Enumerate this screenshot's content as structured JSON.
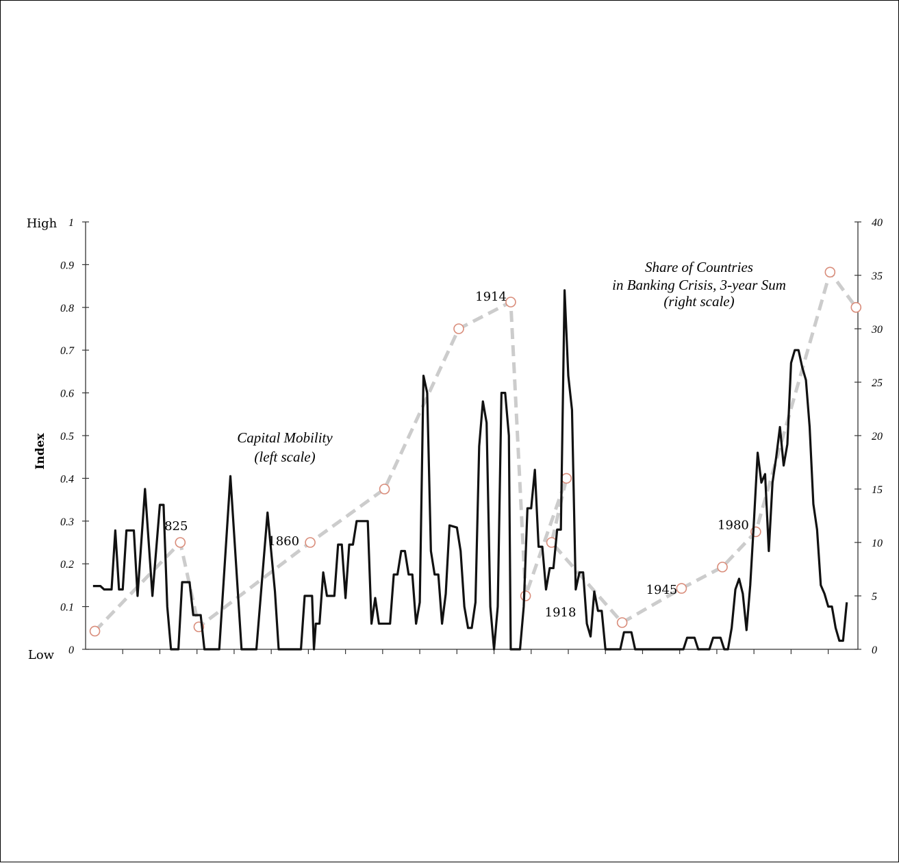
{
  "chart_data": {
    "type": "line",
    "ylabel": "Index",
    "left_axis": {
      "range": [
        0,
        1
      ],
      "tick_labels": [
        "0",
        "0.1",
        "0.2",
        "0.3",
        "0.4",
        "0.5",
        "0.6",
        "0.7",
        "0.8",
        "0.9",
        "1"
      ],
      "high_label": "High",
      "low_label": "Low"
    },
    "right_axis": {
      "range": [
        0,
        40
      ],
      "tick_labels": [
        "0",
        "5",
        "10",
        "15",
        "20",
        "25",
        "30",
        "35",
        "40"
      ]
    },
    "x_range": [
      1800,
      2008
    ],
    "colors": {
      "capital_mobility": "#111111",
      "banking_crisis_line": "#cccccc",
      "banking_crisis_marker": "#d98c7a"
    },
    "series": [
      {
        "name": "Capital Mobility (left scale)",
        "label_line1": "Capital Mobility",
        "label_line2": "(left scale)",
        "style": "solid",
        "points": [
          [
            1802,
            0.148
          ],
          [
            1804,
            0.148
          ],
          [
            1805,
            0.14
          ],
          [
            1807,
            0.14
          ],
          [
            1808,
            0.278
          ],
          [
            1809,
            0.14
          ],
          [
            1810,
            0.14
          ],
          [
            1811,
            0.278
          ],
          [
            1813,
            0.278
          ],
          [
            1814,
            0.125
          ],
          [
            1816,
            0.375
          ],
          [
            1818,
            0.125
          ],
          [
            1820,
            0.338
          ],
          [
            1821,
            0.338
          ],
          [
            1822,
            0.1
          ],
          [
            1823,
            0.0
          ],
          [
            1825,
            0.0
          ],
          [
            1826,
            0.157
          ],
          [
            1828,
            0.157
          ],
          [
            1829,
            0.08
          ],
          [
            1831,
            0.08
          ],
          [
            1832,
            0.0
          ],
          [
            1836,
            0.0
          ],
          [
            1839,
            0.405
          ],
          [
            1842,
            0.0
          ],
          [
            1846,
            0.0
          ],
          [
            1849,
            0.32
          ],
          [
            1851,
            0.135
          ],
          [
            1852,
            0.0
          ],
          [
            1858,
            0.0
          ],
          [
            1859,
            0.125
          ],
          [
            1861,
            0.125
          ],
          [
            1861.5,
            0.0
          ],
          [
            1862,
            0.06
          ],
          [
            1863,
            0.06
          ],
          [
            1864,
            0.18
          ],
          [
            1865,
            0.125
          ],
          [
            1867,
            0.125
          ],
          [
            1868,
            0.245
          ],
          [
            1869,
            0.245
          ],
          [
            1870,
            0.12
          ],
          [
            1871,
            0.245
          ],
          [
            1872,
            0.245
          ],
          [
            1873,
            0.3
          ],
          [
            1876,
            0.3
          ],
          [
            1877,
            0.06
          ],
          [
            1878,
            0.12
          ],
          [
            1879,
            0.06
          ],
          [
            1882,
            0.06
          ],
          [
            1883,
            0.175
          ],
          [
            1884,
            0.175
          ],
          [
            1885,
            0.23
          ],
          [
            1886,
            0.23
          ],
          [
            1887,
            0.175
          ],
          [
            1888,
            0.175
          ],
          [
            1889,
            0.06
          ],
          [
            1890,
            0.11
          ],
          [
            1891,
            0.64
          ],
          [
            1892,
            0.6
          ],
          [
            1893,
            0.23
          ],
          [
            1894,
            0.175
          ],
          [
            1895,
            0.175
          ],
          [
            1896,
            0.06
          ],
          [
            1897,
            0.13
          ],
          [
            1898,
            0.29
          ],
          [
            1900,
            0.285
          ],
          [
            1901,
            0.23
          ],
          [
            1902,
            0.1
          ],
          [
            1903,
            0.05
          ],
          [
            1904,
            0.05
          ],
          [
            1905,
            0.11
          ],
          [
            1906,
            0.475
          ],
          [
            1907,
            0.58
          ],
          [
            1908,
            0.53
          ],
          [
            1909,
            0.1
          ],
          [
            1910,
            0.0
          ],
          [
            1911,
            0.1
          ],
          [
            1912,
            0.6
          ],
          [
            1913,
            0.6
          ],
          [
            1914,
            0.5
          ],
          [
            1914.5,
            0.0
          ],
          [
            1917,
            0.0
          ],
          [
            1918,
            0.1
          ],
          [
            1919,
            0.33
          ],
          [
            1920,
            0.33
          ],
          [
            1921,
            0.42
          ],
          [
            1922,
            0.24
          ],
          [
            1923,
            0.24
          ],
          [
            1924,
            0.14
          ],
          [
            1925,
            0.19
          ],
          [
            1926,
            0.19
          ],
          [
            1927,
            0.28
          ],
          [
            1928,
            0.28
          ],
          [
            1929,
            0.84
          ],
          [
            1930,
            0.64
          ],
          [
            1931,
            0.56
          ],
          [
            1932,
            0.14
          ],
          [
            1933,
            0.18
          ],
          [
            1934,
            0.18
          ],
          [
            1935,
            0.06
          ],
          [
            1936,
            0.03
          ],
          [
            1937,
            0.135
          ],
          [
            1938,
            0.09
          ],
          [
            1939,
            0.09
          ],
          [
            1940,
            0.0
          ],
          [
            1944,
            0.0
          ],
          [
            1945,
            0.04
          ],
          [
            1947,
            0.04
          ],
          [
            1948,
            0.0
          ],
          [
            1958,
            0.0
          ],
          [
            1961,
            0.0
          ],
          [
            1962,
            0.027
          ],
          [
            1964,
            0.027
          ],
          [
            1965,
            0.0
          ],
          [
            1968,
            0.0
          ],
          [
            1969,
            0.027
          ],
          [
            1971,
            0.027
          ],
          [
            1972,
            0.0
          ],
          [
            1973,
            0.0
          ],
          [
            1974,
            0.05
          ],
          [
            1975,
            0.14
          ],
          [
            1976,
            0.165
          ],
          [
            1977,
            0.13
          ],
          [
            1978,
            0.045
          ],
          [
            1979,
            0.15
          ],
          [
            1980,
            0.3
          ],
          [
            1981,
            0.46
          ],
          [
            1982,
            0.39
          ],
          [
            1983,
            0.41
          ],
          [
            1984,
            0.23
          ],
          [
            1985,
            0.39
          ],
          [
            1986,
            0.45
          ],
          [
            1987,
            0.52
          ],
          [
            1988,
            0.43
          ],
          [
            1989,
            0.48
          ],
          [
            1990,
            0.67
          ],
          [
            1991,
            0.7
          ],
          [
            1992,
            0.7
          ],
          [
            1993,
            0.66
          ],
          [
            1994,
            0.63
          ],
          [
            1995,
            0.52
          ],
          [
            1996,
            0.34
          ],
          [
            1997,
            0.28
          ],
          [
            1998,
            0.15
          ],
          [
            1999,
            0.13
          ],
          [
            2000,
            0.1
          ],
          [
            2001,
            0.1
          ],
          [
            2002,
            0.05
          ],
          [
            2003,
            0.02
          ],
          [
            2004,
            0.02
          ],
          [
            2005,
            0.11
          ]
        ]
      },
      {
        "name": "Share of Countries in Banking Crisis, 3-year Sum (right scale)",
        "label_line1": "Share of Countries",
        "label_line2": "in Banking Crisis, 3-year Sum",
        "label_line3": "(right scale)",
        "style": "dashed",
        "points": [
          [
            1802.5,
            1.7
          ],
          [
            1825.5,
            10.0
          ],
          [
            1830.5,
            2.1
          ],
          [
            1860.5,
            10.0
          ],
          [
            1880.5,
            15.0
          ],
          [
            1900.5,
            30.0
          ],
          [
            1914.5,
            32.5
          ],
          [
            1918.5,
            5.0
          ],
          [
            1929.5,
            16.0
          ],
          [
            1925.5,
            10.0
          ],
          [
            1944.5,
            2.5
          ],
          [
            1960.5,
            5.7
          ],
          [
            1971.5,
            7.7
          ],
          [
            1980.5,
            11.0
          ],
          [
            2000.5,
            35.3
          ],
          [
            2007.5,
            32.0
          ]
        ]
      }
    ],
    "annotations": [
      {
        "text": "825",
        "x": 1825.5,
        "y_right": 10.0
      },
      {
        "text": "1860",
        "x": 1860.5,
        "y_right": 10.0
      },
      {
        "text": "1914",
        "x": 1914.5,
        "y_right": 32.5
      },
      {
        "text": "1918",
        "x": 1918.5,
        "y_right": 5.0
      },
      {
        "text": "1945",
        "x": 1960.5,
        "y_right": 5.7
      },
      {
        "text": "1980",
        "x": 1980.5,
        "y_right": 11.0
      }
    ]
  }
}
